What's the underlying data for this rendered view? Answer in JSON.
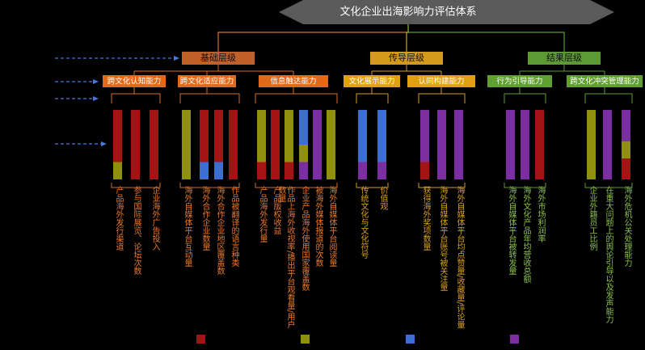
{
  "title": "文化企业出海影响力评估体系",
  "levels": [
    {
      "name": "基础层级",
      "abilities": [
        {
          "name": "跨文化认知能力",
          "indicators": [
            "产品海外发行渠道",
            "参与国际展览、论坛次数",
            "企业海外广告投入"
          ]
        },
        {
          "name": "跨文化适应能力",
          "indicators": [
            "海外自媒体平台互动量",
            "海外合作企业数量",
            "海外合作企业地区覆盖数",
            "作品被翻译的语言种类"
          ]
        },
        {
          "name": "信息触达能力",
          "indicators": [
            "产品海外发行量",
            "产品版权收益",
            "作品上海外收视率/播出平台观看量/用户数量",
            "企业产品海外使用国家覆盖数",
            "被海外媒体报道的次数",
            "海外自媒体平台阅读量"
          ]
        }
      ]
    },
    {
      "name": "传导层级",
      "abilities": [
        {
          "name": "文化展示能力",
          "indicators": [
            "传统文化与文化符号",
            "价值观"
          ]
        },
        {
          "name": "认同构建能力",
          "indicators": [
            "获得海外奖项数量",
            "海外自媒体平台账号被关注量",
            "海外自媒体平台均点赞量/收藏量/评论量"
          ]
        }
      ]
    },
    {
      "name": "结果层级",
      "abilities": [
        {
          "name": "行为引导能力",
          "indicators": [
            "海外自媒体平台被转发量",
            "海外文化产品年均营收总额",
            "海外市场利润率"
          ]
        },
        {
          "name": "跨文化冲突管理能力",
          "indicators": [
            "企业外籍员工比例",
            "在重大问题上的舆论引导以及发声能力",
            "海外危机公关处理能力"
          ]
        }
      ]
    }
  ]
}
